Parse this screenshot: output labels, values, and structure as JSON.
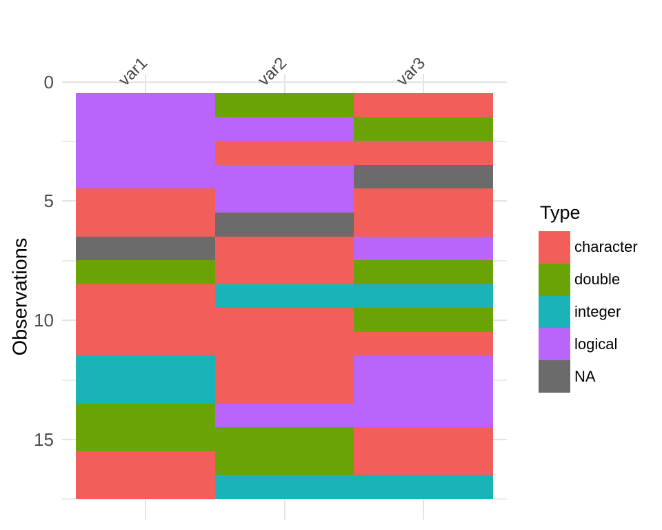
{
  "y_axis": {
    "title": "Observations",
    "ticks": [
      "0",
      "5",
      "10",
      "15"
    ]
  },
  "x_axis": {
    "labels": [
      "var1",
      "var2",
      "var3"
    ]
  },
  "legend": {
    "title": "Type",
    "items": [
      {
        "label": "character",
        "color": "#F25F5B"
      },
      {
        "label": "double",
        "color": "#6AA306"
      },
      {
        "label": "integer",
        "color": "#1AB3B8"
      },
      {
        "label": "logical",
        "color": "#B964FA"
      },
      {
        "label": "NA",
        "color": "#6B6B6B"
      }
    ]
  },
  "chart_data": {
    "type": "heatmap",
    "title": "",
    "xlabel": "",
    "ylabel": "Observations",
    "legend_title": "Type",
    "legend_position": "right",
    "x_categories": [
      "var1",
      "var2",
      "var3"
    ],
    "n_observations": 17,
    "y_tick_positions": [
      0,
      5,
      10,
      15
    ],
    "y_minor_gridlines": [
      2.5,
      7.5,
      12.5,
      17.5
    ],
    "value_levels": [
      "character",
      "double",
      "integer",
      "logical",
      "NA"
    ],
    "cells_by_row": [
      [
        "logical",
        "double",
        "character"
      ],
      [
        "logical",
        "logical",
        "double"
      ],
      [
        "logical",
        "character",
        "character"
      ],
      [
        "logical",
        "logical",
        "NA"
      ],
      [
        "character",
        "logical",
        "character"
      ],
      [
        "character",
        "NA",
        "character"
      ],
      [
        "NA",
        "character",
        "logical"
      ],
      [
        "double",
        "character",
        "double"
      ],
      [
        "character",
        "integer",
        "integer"
      ],
      [
        "character",
        "character",
        "double"
      ],
      [
        "character",
        "character",
        "character"
      ],
      [
        "integer",
        "character",
        "logical"
      ],
      [
        "integer",
        "character",
        "logical"
      ],
      [
        "double",
        "logical",
        "logical"
      ],
      [
        "double",
        "double",
        "character"
      ],
      [
        "character",
        "double",
        "character"
      ],
      [
        "character",
        "integer",
        "integer"
      ]
    ]
  }
}
